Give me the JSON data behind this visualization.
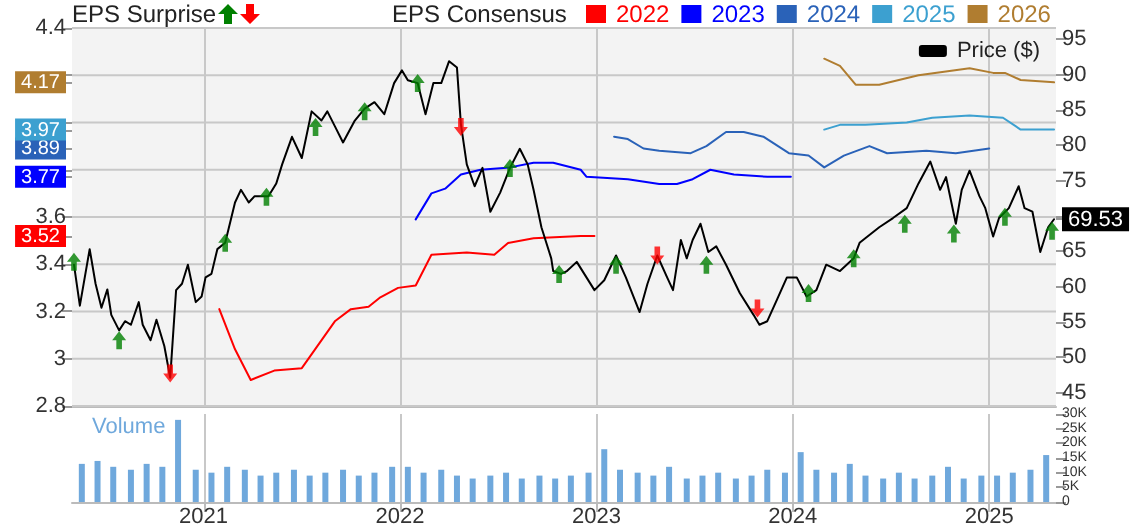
{
  "chart_data": {
    "type": "line",
    "legend_title": "EPS Consensus",
    "annotations": [
      "EPS Surprise"
    ],
    "legend": "top",
    "grid": true,
    "xlim": [
      2020.33,
      2025.34
    ],
    "xticks": [
      2021,
      2022,
      2023,
      2024,
      2025
    ],
    "ylim": [
      2.8,
      4.4
    ],
    "yticks": [
      2.8,
      3,
      3.2,
      3.4,
      3.52,
      3.6,
      3.77,
      {
        "value": 3.8,
        "label": null
      },
      3.89,
      3.97,
      {
        "value": 4,
        "label": null
      },
      4.17,
      {
        "value": 4.2,
        "label": null
      },
      4.4
    ],
    "y2lim": [
      43.1,
      96.6
    ],
    "y2ticks": [
      45,
      50,
      55,
      60,
      65,
      69.53,
      {
        "value": 70,
        "label": null
      },
      75,
      80,
      85,
      90,
      95
    ],
    "y3lim": [
      0,
      30000
    ],
    "y3ticks": [
      0,
      {
        "value": 5000,
        "label": "5K"
      },
      {
        "value": 10000,
        "label": "10K"
      },
      {
        "value": 15000,
        "label": "15K"
      },
      {
        "value": 20000,
        "label": "20K"
      },
      {
        "value": 25000,
        "label": "25K"
      },
      {
        "value": 30000,
        "label": "30K"
      }
    ],
    "series": [
      {
        "name": "2022",
        "color": "#ff0000",
        "x": [
          2021.08,
          2021.16,
          2021.24,
          2021.36,
          2021.5,
          2021.67,
          2021.75,
          2021.84,
          2021.9,
          2021.99,
          2022.08,
          2022.16,
          2022.34,
          2022.48,
          2022.55,
          2022.68,
          2022.92,
          2022.99
        ],
        "values": [
          3.21,
          3.04,
          2.91,
          2.95,
          2.96,
          3.16,
          3.21,
          3.22,
          3.26,
          3.3,
          3.31,
          3.44,
          3.45,
          3.44,
          3.49,
          3.51,
          3.52,
          3.52
        ]
      },
      {
        "name": "2023",
        "color": "#0000ff",
        "x": [
          2022.08,
          2022.16,
          2022.23,
          2022.31,
          2022.41,
          2022.56,
          2022.68,
          2022.78,
          2022.92,
          2022.95,
          2023.16,
          2023.32,
          2023.41,
          2023.49,
          2023.58,
          2023.7,
          2023.87,
          2023.99
        ],
        "values": [
          3.59,
          3.7,
          3.72,
          3.78,
          3.8,
          3.81,
          3.83,
          3.83,
          3.8,
          3.77,
          3.76,
          3.74,
          3.74,
          3.76,
          3.8,
          3.78,
          3.77,
          3.77
        ]
      },
      {
        "name": "2024",
        "color": "#2a62b8",
        "x": [
          2023.09,
          2023.16,
          2023.24,
          2023.32,
          2023.48,
          2023.56,
          2023.66,
          2023.75,
          2023.85,
          2023.98,
          2024.08,
          2024.16,
          2024.26,
          2024.39,
          2024.48,
          2024.68,
          2024.83,
          2025.0
        ],
        "values": [
          3.94,
          3.93,
          3.89,
          3.88,
          3.87,
          3.9,
          3.96,
          3.96,
          3.94,
          3.87,
          3.86,
          3.81,
          3.86,
          3.9,
          3.87,
          3.88,
          3.87,
          3.89
        ]
      },
      {
        "name": "2025",
        "color": "#3ca0d0",
        "x": [
          2024.16,
          2024.24,
          2024.37,
          2024.58,
          2024.71,
          2024.9,
          2025.07,
          2025.16,
          2025.33
        ],
        "values": [
          3.97,
          3.99,
          3.99,
          4.0,
          4.02,
          4.03,
          4.02,
          3.97,
          3.97
        ]
      },
      {
        "name": "2026",
        "color": "#b07d30",
        "x": [
          2024.16,
          2024.24,
          2024.32,
          2024.44,
          2024.64,
          2024.9,
          2025.02,
          2025.08,
          2025.16,
          2025.33
        ],
        "values": [
          4.27,
          4.24,
          4.16,
          4.16,
          4.2,
          4.23,
          4.21,
          4.21,
          4.18,
          4.17
        ]
      },
      {
        "name": "Price ($)",
        "color": "#000000",
        "axis": "y2",
        "x": [
          2020.34,
          2020.37,
          2020.42,
          2020.45,
          2020.48,
          2020.51,
          2020.53,
          2020.57,
          2020.6,
          2020.63,
          2020.67,
          2020.69,
          2020.73,
          2020.76,
          2020.8,
          2020.83,
          2020.86,
          2020.89,
          2020.92,
          2020.96,
          2020.99,
          2021.01,
          2021.04,
          2021.07,
          2021.11,
          2021.16,
          2021.19,
          2021.23,
          2021.26,
          2021.33,
          2021.37,
          2021.4,
          2021.45,
          2021.5,
          2021.55,
          2021.6,
          2021.63,
          2021.67,
          2021.71,
          2021.77,
          2021.82,
          2021.87,
          2021.92,
          2021.97,
          2022.01,
          2022.04,
          2022.09,
          2022.13,
          2022.17,
          2022.21,
          2022.25,
          2022.29,
          2022.31,
          2022.34,
          2022.38,
          2022.42,
          2022.46,
          2022.51,
          2022.56,
          2022.61,
          2022.65,
          2022.68,
          2022.72,
          2022.77,
          2022.78,
          2022.82,
          2022.85,
          2022.9,
          2022.99,
          2023.04,
          2023.1,
          2023.15,
          2023.22,
          2023.26,
          2023.31,
          2023.36,
          2023.39,
          2023.43,
          2023.46,
          2023.49,
          2023.53,
          2023.57,
          2023.61,
          2023.66,
          2023.73,
          2023.8,
          2023.83,
          2023.87,
          2023.92,
          2023.97,
          2024.02,
          2024.07,
          2024.12,
          2024.17,
          2024.24,
          2024.31,
          2024.34,
          2024.44,
          2024.51,
          2024.58,
          2024.64,
          2024.7,
          2024.75,
          2024.78,
          2024.83,
          2024.86,
          2024.9,
          2024.95,
          2024.98,
          2025.02,
          2025.05,
          2025.1,
          2025.15,
          2025.18,
          2025.22,
          2025.26,
          2025.3,
          2025.33
        ],
        "values": [
          63.1,
          57.3,
          65.3,
          60.4,
          57.0,
          59.6,
          56.0,
          53.8,
          55.1,
          54.6,
          57.8,
          54.6,
          52.4,
          55.3,
          51.6,
          47.1,
          59.5,
          60.4,
          63.1,
          57.8,
          58.6,
          61.3,
          61.8,
          65.3,
          66.2,
          71.9,
          73.7,
          71.9,
          72.8,
          72.8,
          74.6,
          77.3,
          81.2,
          78.2,
          84.8,
          83.5,
          84.8,
          82.6,
          80.4,
          83.5,
          85.2,
          86.1,
          84.4,
          88.8,
          90.6,
          89.2,
          88.8,
          84.4,
          88.8,
          88.8,
          91.9,
          91.0,
          83.0,
          77.3,
          74.2,
          76.8,
          70.6,
          73.3,
          76.8,
          79.5,
          77.3,
          73.7,
          68.4,
          64.0,
          62.2,
          61.8,
          62.2,
          63.5,
          59.5,
          60.9,
          64.4,
          61.3,
          56.4,
          60.4,
          64.4,
          61.3,
          59.5,
          66.6,
          64.0,
          66.6,
          68.9,
          64.9,
          65.7,
          63.1,
          59.1,
          56.0,
          54.6,
          55.1,
          58.2,
          61.3,
          61.3,
          58.6,
          59.5,
          63.1,
          62.2,
          64.0,
          66.2,
          68.4,
          69.7,
          71.1,
          74.6,
          77.7,
          73.7,
          75.5,
          68.9,
          73.7,
          76.4,
          72.8,
          71.1,
          67.1,
          69.7,
          71.1,
          74.2,
          71.1,
          70.6,
          64.9,
          68.4,
          69.53
        ]
      },
      {
        "type": "scatter",
        "marker": "triangle",
        "color": "#008000",
        "axis": "y2",
        "x": [
          2020.34,
          2020.57,
          2021.11,
          2021.32,
          2021.57,
          2021.82,
          2022.09,
          2022.56,
          2022.81,
          2023.1,
          2023.56,
          2024.08,
          2024.31,
          2024.57,
          2024.82,
          2025.08,
          2025.32
        ],
        "values": [
          63.5,
          52.4,
          66.2,
          72.7,
          82.6,
          84.8,
          88.8,
          76.8,
          61.8,
          63.1,
          63.1,
          59.1,
          64.0,
          68.9,
          67.5,
          69.9,
          67.9
        ]
      },
      {
        "type": "scatter",
        "marker": "triangle",
        "color": "#ff0000",
        "axis": "y2",
        "x": [
          2020.83,
          2022.31,
          2023.31,
          2023.82
        ],
        "values": [
          47.7,
          82.6,
          64.4,
          56.9
        ]
      },
      {
        "type": "bar",
        "name": "Volume",
        "color": "#6fa8dc",
        "axis": "y3",
        "x": [
          2020.38,
          2020.46,
          2020.54,
          2020.63,
          2020.71,
          2020.79,
          2020.87,
          2020.96,
          2021.04,
          2021.12,
          2021.21,
          2021.29,
          2021.37,
          2021.46,
          2021.54,
          2021.62,
          2021.71,
          2021.79,
          2021.87,
          2021.96,
          2022.04,
          2022.12,
          2022.21,
          2022.29,
          2022.37,
          2022.46,
          2022.54,
          2022.62,
          2022.71,
          2022.79,
          2022.87,
          2022.96,
          2023.04,
          2023.12,
          2023.21,
          2023.29,
          2023.37,
          2023.46,
          2023.54,
          2023.62,
          2023.71,
          2023.79,
          2023.87,
          2023.96,
          2024.04,
          2024.12,
          2024.21,
          2024.29,
          2024.37,
          2024.46,
          2024.54,
          2024.62,
          2024.71,
          2024.79,
          2024.87,
          2024.96,
          2025.04,
          2025.12,
          2025.21,
          2025.29
        ],
        "values": [
          13000,
          14000,
          12000,
          11000,
          13000,
          12000,
          28000,
          11000,
          10000,
          12000,
          11000,
          9000,
          10000,
          11000,
          9000,
          10000,
          11000,
          9000,
          10000,
          12000,
          12000,
          10000,
          11000,
          9000,
          8000,
          9000,
          10000,
          8000,
          9000,
          8000,
          9000,
          10000,
          18000,
          11000,
          10000,
          9000,
          12000,
          8000,
          9000,
          10000,
          8000,
          9000,
          11000,
          10000,
          17000,
          11000,
          10000,
          13000,
          9000,
          8000,
          10000,
          8000,
          9000,
          12000,
          8000,
          9000,
          9000,
          10000,
          11000,
          16000
        ]
      }
    ]
  }
}
